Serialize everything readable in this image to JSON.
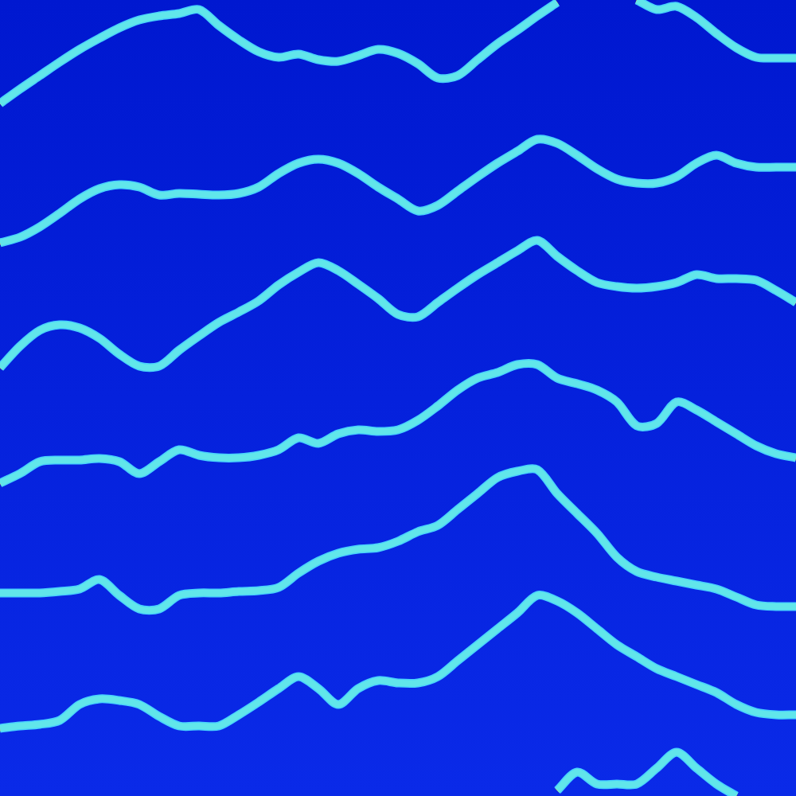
{
  "chart_data": {
    "type": "line",
    "x": [
      0,
      25,
      50,
      75,
      100,
      125,
      150,
      175,
      200,
      225,
      250,
      275,
      300,
      325,
      350,
      375,
      400,
      425,
      450,
      475,
      500,
      525,
      550,
      575,
      600,
      625,
      650,
      675,
      700,
      725,
      750,
      775,
      800,
      825,
      850,
      875,
      900,
      925,
      950,
      975,
      1000
    ],
    "xlim": [
      0,
      1000
    ],
    "ylim": [
      1000,
      0
    ],
    "xticks": [],
    "yticks": [],
    "tick_labels": false,
    "grid": false,
    "series": [
      {
        "color": "#d40000",
        "values": [
          130,
          112,
          95,
          78,
          62,
          48,
          35,
          25,
          20,
          17,
          12,
          32,
          50,
          65,
          72,
          68,
          75,
          77,
          70,
          62,
          67,
          80,
          98,
          95,
          75,
          55,
          38,
          20,
          3,
          null,
          null,
          null,
          0,
          12,
          8,
          22,
          42,
          60,
          72,
          73,
          73
        ]
      },
      {
        "color": "#d40000",
        "values": [
          305,
          298,
          285,
          268,
          250,
          237,
          232,
          235,
          245,
          243,
          244,
          245,
          243,
          235,
          218,
          205,
          200,
          205,
          218,
          235,
          250,
          265,
          258,
          240,
          222,
          205,
          190,
          175,
          180,
          195,
          212,
          225,
          230,
          230,
          222,
          205,
          195,
          205,
          210,
          210,
          210
        ]
      },
      {
        "color": "#d40000",
        "values": [
          462,
          435,
          415,
          408,
          412,
          425,
          445,
          460,
          460,
          440,
          422,
          405,
          392,
          378,
          358,
          342,
          330,
          340,
          357,
          375,
          395,
          398,
          380,
          362,
          345,
          330,
          315,
          302,
          322,
          340,
          355,
          360,
          362,
          360,
          355,
          345,
          350,
          350,
          352,
          365,
          380
        ]
      },
      {
        "color": "#d40000",
        "values": [
          607,
          595,
          580,
          578,
          578,
          576,
          580,
          595,
          580,
          565,
          572,
          575,
          575,
          572,
          565,
          550,
          557,
          545,
          540,
          542,
          540,
          528,
          510,
          490,
          475,
          468,
          458,
          458,
          475,
          482,
          490,
          505,
          535,
          532,
          505,
          515,
          530,
          545,
          560,
          570,
          575
        ]
      },
      {
        "color": "#d40000",
        "values": [
          745,
          745,
          745,
          743,
          740,
          728,
          748,
          765,
          765,
          748,
          745,
          745,
          743,
          742,
          738,
          720,
          705,
          695,
          690,
          688,
          680,
          668,
          660,
          640,
          620,
          600,
          592,
          590,
          620,
          645,
          670,
          700,
          718,
          725,
          730,
          735,
          740,
          750,
          760,
          762,
          762
        ]
      },
      {
        "color": "#d40000",
        "values": [
          915,
          912,
          910,
          905,
          885,
          878,
          880,
          885,
          900,
          912,
          912,
          912,
          898,
          882,
          865,
          850,
          865,
          885,
          865,
          855,
          858,
          858,
          850,
          830,
          810,
          790,
          770,
          748,
          755,
          770,
          790,
          810,
          825,
          840,
          850,
          860,
          870,
          885,
          895,
          898,
          898
        ]
      },
      {
        "color": "#d40000",
        "values": [
          null,
          null,
          null,
          null,
          null,
          null,
          null,
          null,
          null,
          null,
          null,
          null,
          null,
          null,
          null,
          null,
          null,
          null,
          null,
          null,
          null,
          null,
          null,
          null,
          null,
          null,
          null,
          null,
          993,
          970,
          985,
          985,
          985,
          965,
          945,
          965,
          985,
          1000,
          null,
          null,
          null
        ]
      }
    ]
  }
}
